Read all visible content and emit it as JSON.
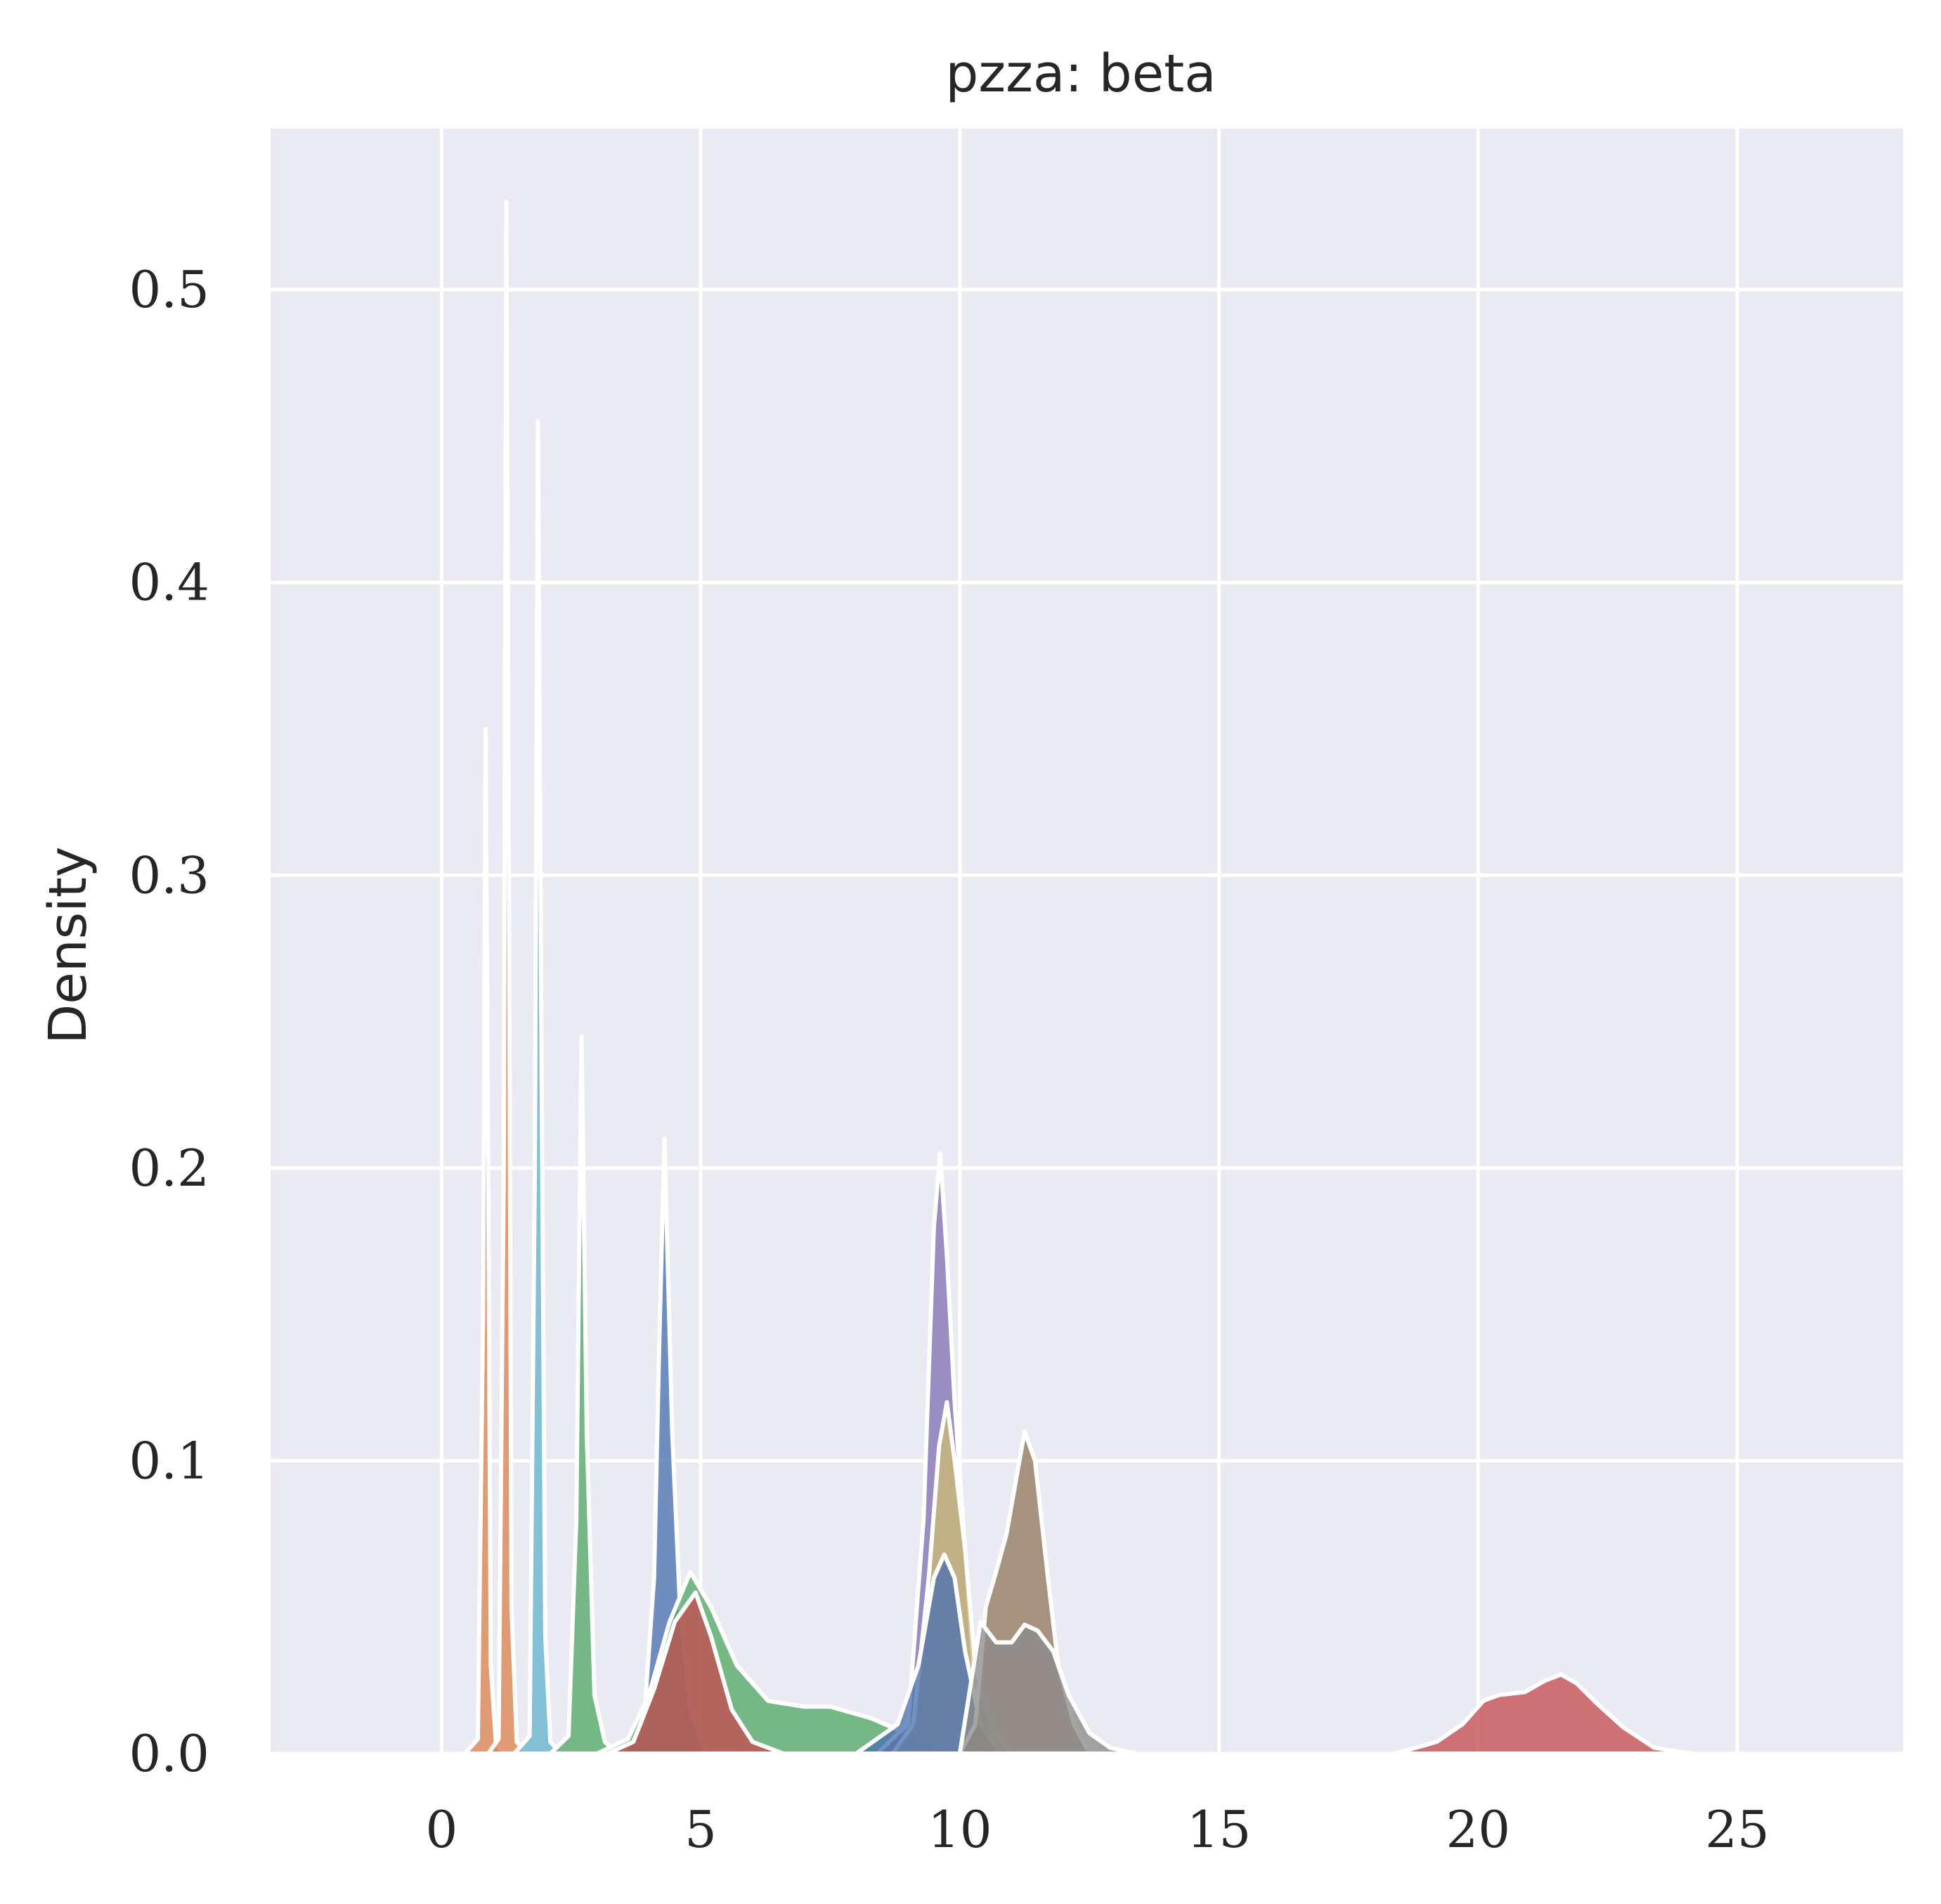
{
  "chart_data": {
    "type": "area",
    "title": "pzza:  beta",
    "xlabel": "",
    "ylabel": "Density",
    "xlim": [
      -3.3,
      28.2
    ],
    "ylim": [
      0,
      0.555
    ],
    "xticks": [
      0,
      5,
      10,
      15,
      20,
      25
    ],
    "yticks": [
      0.0,
      0.1,
      0.2,
      0.3,
      0.4,
      0.5
    ],
    "ytick_labels": [
      "0.0",
      "0.1",
      "0.2",
      "0.3",
      "0.4",
      "0.5"
    ],
    "grid": true,
    "legend": "none",
    "style": {
      "plot_background": "#eaeaf2",
      "grid_color": "#ffffff",
      "outline_color": "#ffffff"
    },
    "series": [
      {
        "color": "#dd8452",
        "x": [
          0.45,
          0.7,
          0.8,
          0.85,
          0.9,
          0.95,
          1.05,
          1.25
        ],
        "y": [
          0,
          0.005,
          0.15,
          0.35,
          0.2,
          0.03,
          0.003,
          0
        ]
      },
      {
        "color": "#dd8452",
        "x": [
          0.9,
          1.1,
          1.2,
          1.25,
          1.3,
          1.35,
          1.45,
          1.65
        ],
        "y": [
          0,
          0.005,
          0.2,
          0.53,
          0.3,
          0.05,
          0.004,
          0
        ]
      },
      {
        "color": "#64b5cd",
        "x": [
          1.4,
          1.7,
          1.8,
          1.86,
          1.92,
          2.0,
          2.1,
          2.3
        ],
        "y": [
          0,
          0.006,
          0.2,
          0.455,
          0.26,
          0.04,
          0.004,
          0
        ]
      },
      {
        "color": "#55a868",
        "x": [
          2.1,
          2.45,
          2.6,
          2.7,
          2.8,
          2.95,
          3.15,
          3.4
        ],
        "y": [
          0,
          0.006,
          0.08,
          0.245,
          0.11,
          0.02,
          0.004,
          0
        ]
      },
      {
        "color": "#4c72b0",
        "x": [
          3.5,
          3.9,
          4.1,
          4.2,
          4.3,
          4.45,
          4.6,
          4.8,
          5.1
        ],
        "y": [
          0,
          0.01,
          0.06,
          0.14,
          0.21,
          0.11,
          0.05,
          0.015,
          0
        ]
      },
      {
        "color": "#55a868",
        "x": [
          3.0,
          3.6,
          4.0,
          4.4,
          4.8,
          5.2,
          5.7,
          6.3,
          7.0,
          7.5,
          8.3,
          9.2,
          9.8,
          10.3,
          10.6
        ],
        "y": [
          0,
          0.005,
          0.02,
          0.045,
          0.062,
          0.05,
          0.03,
          0.018,
          0.016,
          0.016,
          0.012,
          0.005,
          0.002,
          0.001,
          0
        ]
      },
      {
        "color": "#c44e52",
        "x": [
          3.2,
          3.7,
          4.1,
          4.5,
          4.9,
          5.2,
          5.6,
          6.0,
          6.6
        ],
        "y": [
          0,
          0.004,
          0.022,
          0.045,
          0.055,
          0.04,
          0.015,
          0.004,
          0
        ]
      },
      {
        "color": "#8172b3",
        "x": [
          8.4,
          9.0,
          9.3,
          9.5,
          9.62,
          9.75,
          9.9,
          10.1,
          10.3,
          10.6
        ],
        "y": [
          0,
          0.01,
          0.08,
          0.18,
          0.205,
          0.17,
          0.12,
          0.07,
          0.02,
          0
        ]
      },
      {
        "color": "#ccb974",
        "x": [
          8.7,
          9.1,
          9.4,
          9.6,
          9.75,
          9.9,
          10.1,
          10.3,
          10.6,
          11.0
        ],
        "y": [
          0,
          0.01,
          0.06,
          0.105,
          0.12,
          0.1,
          0.07,
          0.03,
          0.008,
          0
        ]
      },
      {
        "color": "#4c72b0",
        "x": [
          8.0,
          8.8,
          9.2,
          9.5,
          9.7,
          9.9,
          10.1,
          10.4,
          10.8
        ],
        "y": [
          0,
          0.01,
          0.03,
          0.06,
          0.068,
          0.06,
          0.035,
          0.01,
          0
        ]
      },
      {
        "color": "#937860",
        "x": [
          10.0,
          10.3,
          10.5,
          10.7,
          10.9,
          11.1,
          11.25,
          11.45,
          11.7,
          11.9,
          12.2,
          12.5
        ],
        "y": [
          0,
          0.01,
          0.05,
          0.062,
          0.075,
          0.095,
          0.11,
          0.1,
          0.06,
          0.03,
          0.01,
          0
        ]
      },
      {
        "color": "#8c8c8c",
        "x": [
          10.0,
          10.4,
          10.7,
          11.0,
          11.25,
          11.5,
          11.8,
          12.1,
          12.5,
          12.9,
          13.4
        ],
        "y": [
          0,
          0.045,
          0.038,
          0.038,
          0.044,
          0.042,
          0.035,
          0.02,
          0.007,
          0.002,
          0
        ]
      },
      {
        "color": "#c44e52",
        "x": [
          18.4,
          19.2,
          19.7,
          20.1,
          20.4,
          20.9,
          21.3,
          21.6,
          21.9,
          22.3,
          22.8,
          23.4,
          24.1
        ],
        "y": [
          0,
          0.004,
          0.01,
          0.018,
          0.02,
          0.021,
          0.025,
          0.027,
          0.024,
          0.017,
          0.009,
          0.002,
          0
        ]
      }
    ]
  }
}
